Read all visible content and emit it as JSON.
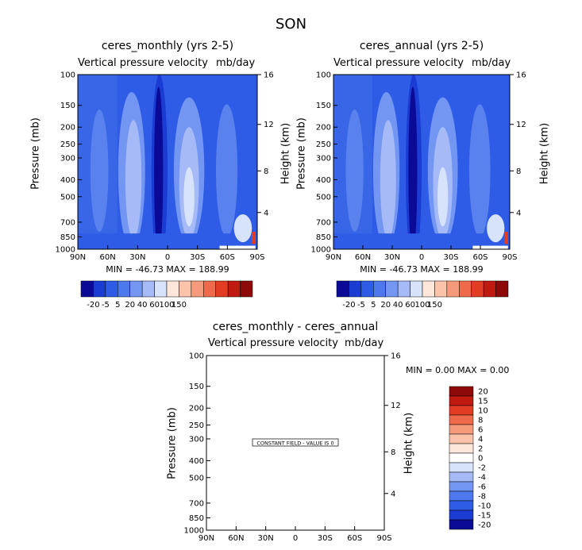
{
  "main_title": "SON",
  "panels": [
    {
      "title": "ceres_monthly (yrs 2-5)",
      "subtitle_left": "Vertical pressure velocity",
      "subtitle_right": "mb/day",
      "ylabel_left": "Pressure (mb)",
      "ylabel_right": "Height (km)",
      "stats": "MIN = -46.73   MAX = 188.99"
    },
    {
      "title": "ceres_annual (yrs 2-5)",
      "subtitle_left": "Vertical pressure velocity",
      "subtitle_right": "mb/day",
      "ylabel_left": "Pressure (mb)",
      "ylabel_right": "Height (km)",
      "stats": "MIN = -46.73   MAX = 188.99"
    },
    {
      "title": "ceres_monthly - ceres_annual",
      "subtitle_left": "Vertical pressure velocity",
      "subtitle_right": "mb/day",
      "ylabel_left": "Pressure (mb)",
      "ylabel_right": "Height (km)",
      "stats": "MIN =    0.00   MAX =    0.00",
      "annotation": "CONSTANT FIELD - VALUE IS 0"
    }
  ],
  "chart_data": [
    {
      "type": "heatmap",
      "title": "ceres_monthly (yrs 2-5)",
      "subtitle": "Vertical pressure velocity   mb/day",
      "xlabel": "",
      "ylabel": "Pressure (mb)",
      "ylabel_right": "Height (km)",
      "x_ticks": [
        "90N",
        "60N",
        "30N",
        "0",
        "30S",
        "60S",
        "90S"
      ],
      "y_ticks": [
        "100",
        "150",
        "200",
        "250",
        "300",
        "400",
        "500",
        "700",
        "850",
        "1000"
      ],
      "y_right_ticks": [
        "16",
        "12",
        "8",
        "4"
      ],
      "y_scale": "log",
      "y_reversed": true,
      "colorbar_levels": [
        "-20",
        "-5",
        "5",
        "20",
        "40",
        "60",
        "100",
        "150"
      ],
      "min": -46.73,
      "max": 188.99
    },
    {
      "type": "heatmap",
      "title": "ceres_annual (yrs 2-5)",
      "subtitle": "Vertical pressure velocity   mb/day",
      "xlabel": "",
      "ylabel": "Pressure (mb)",
      "ylabel_right": "Height (km)",
      "x_ticks": [
        "90N",
        "60N",
        "30N",
        "0",
        "30S",
        "60S",
        "90S"
      ],
      "y_ticks": [
        "100",
        "150",
        "200",
        "250",
        "300",
        "400",
        "500",
        "700",
        "850",
        "1000"
      ],
      "y_right_ticks": [
        "16",
        "12",
        "8",
        "4"
      ],
      "y_scale": "log",
      "y_reversed": true,
      "colorbar_levels": [
        "-20",
        "-5",
        "5",
        "20",
        "40",
        "60",
        "100",
        "150"
      ],
      "min": -46.73,
      "max": 188.99
    },
    {
      "type": "heatmap",
      "title": "ceres_monthly - ceres_annual",
      "subtitle": "Vertical pressure velocity   mb/day",
      "xlabel": "",
      "ylabel": "Pressure (mb)",
      "ylabel_right": "Height (km)",
      "x_ticks": [
        "90N",
        "60N",
        "30N",
        "0",
        "30S",
        "60S",
        "90S"
      ],
      "y_ticks": [
        "100",
        "150",
        "200",
        "250",
        "300",
        "400",
        "500",
        "700",
        "850",
        "1000"
      ],
      "y_right_ticks": [
        "16",
        "12",
        "8",
        "4"
      ],
      "y_scale": "log",
      "y_reversed": true,
      "colorbar_levels": [
        "20",
        "15",
        "10",
        "8",
        "6",
        "4",
        "2",
        "0",
        "-2",
        "-4",
        "-6",
        "-8",
        "-10",
        "-15",
        "-20"
      ],
      "min": 0.0,
      "max": 0.0,
      "annotation": "CONSTANT FIELD - VALUE IS 0"
    }
  ],
  "colors": {
    "cb_top": [
      "#0a0a96",
      "#1a3cd2",
      "#2f5ce6",
      "#4e78ee",
      "#7396f2",
      "#a5baf7",
      "#d7e3fb",
      "#fde7db",
      "#fbc4aa",
      "#f59b7c",
      "#ef6a4a",
      "#e23d22",
      "#c01a10",
      "#8e0a08"
    ],
    "cb_diff": [
      "#8e0a08",
      "#c01a10",
      "#e23d22",
      "#ef6a4a",
      "#f59b7c",
      "#fbc4aa",
      "#fde7db",
      "#ffffff",
      "#d7e3fb",
      "#a5baf7",
      "#7396f2",
      "#4e78ee",
      "#2f5ce6",
      "#1a3cd2",
      "#0a0a96"
    ],
    "field_base": "#2f5ce6",
    "field_light": "#a5baf7",
    "field_dark": "#0a0a96"
  }
}
